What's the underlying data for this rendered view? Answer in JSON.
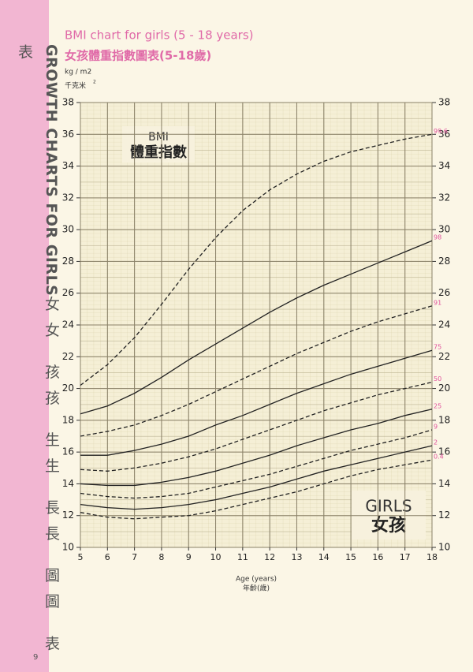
{
  "sidebar": {
    "title": "GROWTH CHARTS FOR GIRLS",
    "title_zh": "女女 孩孩 生生 長長 圖圖 表表",
    "page_number": "9"
  },
  "chart_data": {
    "type": "line",
    "title": "BMI chart for girls (5 - 18 years)",
    "subtitle": "女孩體重指數圖表(5-18歲)",
    "y_label": "kg / m2",
    "y_label_zh": "千克米",
    "y_label_zh_sup": "2",
    "x_label": "Age (years)",
    "x_label_zh": "年齡(歲)",
    "annotations": [
      "BMI",
      "體重指數",
      "GIRLS",
      "女孩"
    ],
    "x": [
      5,
      6,
      7,
      8,
      9,
      10,
      11,
      12,
      13,
      14,
      15,
      16,
      17,
      18
    ],
    "xlim": [
      5,
      18
    ],
    "xticks": [
      5,
      6,
      7,
      8,
      9,
      10,
      11,
      12,
      13,
      14,
      15,
      16,
      17,
      18
    ],
    "ylim": [
      10,
      38
    ],
    "yticks": [
      10,
      12,
      14,
      16,
      18,
      20,
      22,
      24,
      26,
      28,
      30,
      32,
      34,
      36,
      38
    ],
    "right_axis": true,
    "grid": true,
    "label_color": "#e0509a",
    "series": [
      {
        "name": "99.6",
        "color": "#222222",
        "line_style": "dashed",
        "values": [
          20.2,
          21.5,
          23.2,
          25.3,
          27.5,
          29.5,
          31.2,
          32.5,
          33.5,
          34.3,
          34.9,
          35.3,
          35.7,
          36.0
        ]
      },
      {
        "name": "98",
        "color": "#222222",
        "line_style": "solid",
        "values": [
          18.4,
          18.9,
          19.7,
          20.7,
          21.8,
          22.8,
          23.8,
          24.8,
          25.7,
          26.5,
          27.2,
          27.9,
          28.6,
          29.3
        ]
      },
      {
        "name": "91",
        "color": "#222222",
        "line_style": "dashed",
        "values": [
          17.0,
          17.3,
          17.7,
          18.3,
          19.0,
          19.8,
          20.6,
          21.4,
          22.2,
          22.9,
          23.6,
          24.2,
          24.7,
          25.2
        ]
      },
      {
        "name": "75",
        "color": "#222222",
        "line_style": "solid",
        "values": [
          15.8,
          15.8,
          16.1,
          16.5,
          17.0,
          17.7,
          18.3,
          19.0,
          19.7,
          20.3,
          20.9,
          21.4,
          21.9,
          22.4
        ]
      },
      {
        "name": "50",
        "color": "#222222",
        "line_style": "dashed",
        "values": [
          14.9,
          14.8,
          15.0,
          15.3,
          15.7,
          16.2,
          16.8,
          17.4,
          18.0,
          18.6,
          19.1,
          19.6,
          20.0,
          20.4
        ]
      },
      {
        "name": "25",
        "color": "#222222",
        "line_style": "solid",
        "values": [
          14.0,
          13.9,
          13.9,
          14.1,
          14.4,
          14.8,
          15.3,
          15.8,
          16.4,
          16.9,
          17.4,
          17.8,
          18.3,
          18.7
        ]
      },
      {
        "name": "9",
        "color": "#222222",
        "line_style": "dashed",
        "values": [
          13.4,
          13.2,
          13.1,
          13.2,
          13.4,
          13.8,
          14.2,
          14.6,
          15.1,
          15.6,
          16.1,
          16.5,
          16.9,
          17.4
        ]
      },
      {
        "name": "2",
        "color": "#222222",
        "line_style": "solid",
        "values": [
          12.7,
          12.5,
          12.4,
          12.5,
          12.7,
          13.0,
          13.4,
          13.8,
          14.3,
          14.8,
          15.2,
          15.6,
          16.0,
          16.4
        ]
      },
      {
        "name": "0.4",
        "color": "#222222",
        "line_style": "dashed",
        "values": [
          12.2,
          11.9,
          11.8,
          11.9,
          12.0,
          12.3,
          12.7,
          13.1,
          13.5,
          14.0,
          14.5,
          14.9,
          15.2,
          15.5
        ]
      }
    ]
  }
}
